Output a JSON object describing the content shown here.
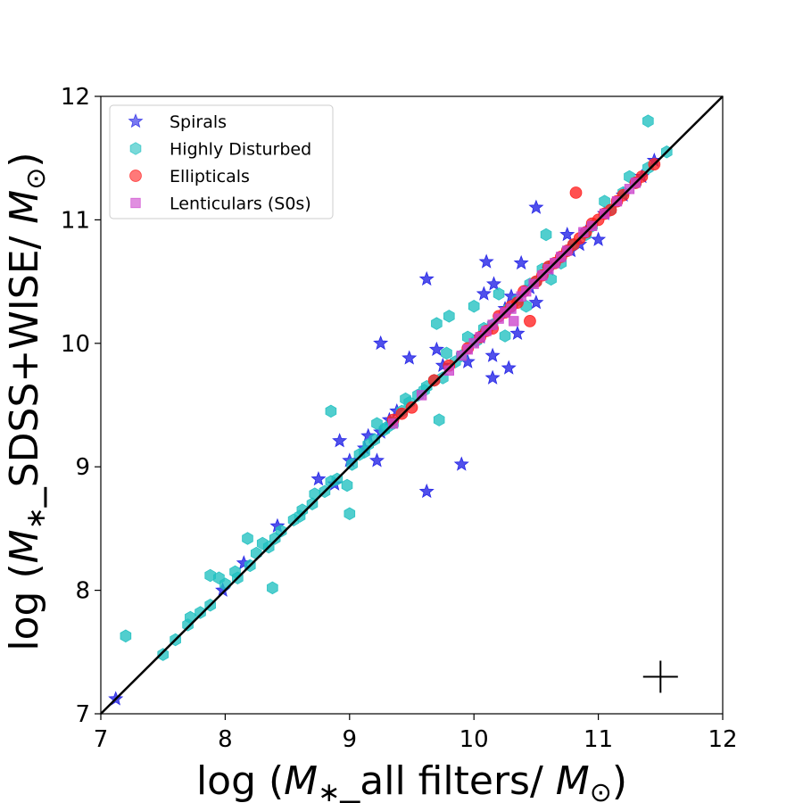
{
  "chart_data": {
    "type": "scatter",
    "title": "",
    "xlabel": {
      "pre": "log (",
      "sym": "M",
      "sub": "∗",
      "mid": "_all filters/ ",
      "sym2": "M",
      "sub2": "⊙",
      "post": ")"
    },
    "ylabel": {
      "pre": "log (",
      "sym": "M",
      "sub": "∗",
      "mid": "_SDSS+WISE/ ",
      "sym2": "M",
      "sub2": "⊙",
      "post": ")"
    },
    "xlim": [
      7,
      12
    ],
    "ylim": [
      7,
      12
    ],
    "xticks": [
      "7",
      "8",
      "9",
      "10",
      "11",
      "12"
    ],
    "yticks": [
      "7",
      "8",
      "9",
      "10",
      "11",
      "12"
    ],
    "grid": false,
    "legend_position": "top-left",
    "one_to_one_line": {
      "from": [
        7,
        7
      ],
      "to": [
        12,
        12
      ],
      "color": "#000000"
    },
    "error_cross": {
      "x": 11.5,
      "y": 7.3,
      "xerr": 0.14,
      "yerr": 0.13,
      "color": "#000000"
    },
    "series": [
      {
        "name": "Spirals",
        "marker": "star",
        "color": "#1f1fe6",
        "points": [
          [
            7.12,
            7.12
          ],
          [
            7.98,
            8.0
          ],
          [
            8.15,
            8.22
          ],
          [
            8.42,
            8.52
          ],
          [
            8.75,
            8.9
          ],
          [
            8.88,
            8.86
          ],
          [
            8.92,
            9.21
          ],
          [
            9.0,
            9.05
          ],
          [
            9.12,
            9.15
          ],
          [
            9.15,
            9.25
          ],
          [
            9.22,
            9.05
          ],
          [
            9.25,
            9.28
          ],
          [
            9.32,
            9.38
          ],
          [
            9.38,
            9.45
          ],
          [
            9.25,
            10.0
          ],
          [
            9.48,
            9.88
          ],
          [
            9.62,
            10.52
          ],
          [
            9.62,
            8.8
          ],
          [
            9.7,
            9.95
          ],
          [
            9.75,
            9.82
          ],
          [
            9.9,
            9.02
          ],
          [
            9.95,
            9.85
          ],
          [
            10.05,
            10.05
          ],
          [
            10.08,
            10.4
          ],
          [
            10.1,
            10.66
          ],
          [
            10.15,
            9.72
          ],
          [
            10.15,
            9.9
          ],
          [
            10.16,
            10.48
          ],
          [
            10.25,
            10.28
          ],
          [
            10.28,
            9.8
          ],
          [
            10.3,
            10.38
          ],
          [
            10.35,
            10.08
          ],
          [
            10.38,
            10.65
          ],
          [
            10.45,
            10.45
          ],
          [
            10.5,
            10.33
          ],
          [
            10.5,
            11.1
          ],
          [
            10.6,
            10.6
          ],
          [
            10.75,
            10.88
          ],
          [
            10.78,
            10.75
          ],
          [
            10.85,
            10.8
          ],
          [
            10.9,
            10.9
          ],
          [
            11.0,
            10.84
          ],
          [
            11.05,
            11.05
          ],
          [
            11.2,
            11.2
          ],
          [
            11.35,
            11.35
          ],
          [
            11.45,
            11.48
          ]
        ]
      },
      {
        "name": "Highly Disturbed",
        "marker": "hexagon",
        "color": "#20c0c0",
        "points": [
          [
            7.2,
            7.63
          ],
          [
            7.5,
            7.48
          ],
          [
            7.6,
            7.6
          ],
          [
            7.7,
            7.72
          ],
          [
            7.72,
            7.78
          ],
          [
            7.8,
            7.82
          ],
          [
            7.88,
            7.88
          ],
          [
            7.88,
            8.12
          ],
          [
            7.95,
            8.1
          ],
          [
            8.0,
            8.05
          ],
          [
            8.08,
            8.15
          ],
          [
            8.1,
            8.1
          ],
          [
            8.18,
            8.42
          ],
          [
            8.2,
            8.2
          ],
          [
            8.25,
            8.3
          ],
          [
            8.3,
            8.38
          ],
          [
            8.35,
            8.35
          ],
          [
            8.38,
            8.02
          ],
          [
            8.4,
            8.42
          ],
          [
            8.45,
            8.48
          ],
          [
            8.55,
            8.57
          ],
          [
            8.6,
            8.6
          ],
          [
            8.62,
            8.65
          ],
          [
            8.7,
            8.7
          ],
          [
            8.72,
            8.78
          ],
          [
            8.8,
            8.8
          ],
          [
            8.85,
            9.45
          ],
          [
            8.85,
            8.88
          ],
          [
            8.9,
            8.9
          ],
          [
            8.98,
            8.85
          ],
          [
            9.0,
            8.62
          ],
          [
            9.02,
            9.02
          ],
          [
            9.08,
            9.1
          ],
          [
            9.12,
            9.12
          ],
          [
            9.15,
            9.18
          ],
          [
            9.2,
            9.22
          ],
          [
            9.22,
            9.35
          ],
          [
            9.28,
            9.3
          ],
          [
            9.3,
            9.32
          ],
          [
            9.35,
            9.35
          ],
          [
            9.42,
            9.45
          ],
          [
            9.45,
            9.55
          ],
          [
            9.48,
            9.52
          ],
          [
            9.55,
            9.58
          ],
          [
            9.6,
            9.62
          ],
          [
            9.62,
            9.65
          ],
          [
            9.68,
            9.7
          ],
          [
            9.7,
            10.16
          ],
          [
            9.72,
            9.38
          ],
          [
            9.75,
            9.72
          ],
          [
            9.78,
            9.92
          ],
          [
            9.8,
            10.22
          ],
          [
            9.85,
            9.85
          ],
          [
            9.9,
            9.9
          ],
          [
            9.95,
            10.05
          ],
          [
            10.0,
            10.3
          ],
          [
            10.02,
            10.02
          ],
          [
            10.08,
            10.12
          ],
          [
            10.15,
            10.15
          ],
          [
            10.2,
            10.4
          ],
          [
            10.25,
            10.06
          ],
          [
            10.28,
            10.28
          ],
          [
            10.35,
            10.35
          ],
          [
            10.42,
            10.3
          ],
          [
            10.45,
            10.48
          ],
          [
            10.5,
            10.5
          ],
          [
            10.55,
            10.6
          ],
          [
            10.58,
            10.88
          ],
          [
            10.6,
            10.62
          ],
          [
            10.62,
            10.52
          ],
          [
            10.7,
            10.65
          ],
          [
            10.75,
            10.75
          ],
          [
            10.8,
            10.8
          ],
          [
            10.9,
            10.88
          ],
          [
            10.95,
            10.95
          ],
          [
            11.05,
            11.15
          ],
          [
            11.1,
            11.08
          ],
          [
            11.2,
            11.22
          ],
          [
            11.25,
            11.35
          ],
          [
            11.3,
            11.3
          ],
          [
            11.4,
            11.42
          ],
          [
            11.55,
            11.55
          ],
          [
            11.4,
            11.8
          ]
        ]
      },
      {
        "name": "Ellipticals",
        "marker": "circle",
        "color": "#ff2020",
        "points": [
          [
            9.35,
            9.38
          ],
          [
            9.42,
            9.43
          ],
          [
            9.5,
            9.48
          ],
          [
            9.68,
            9.7
          ],
          [
            9.8,
            9.82
          ],
          [
            9.95,
            9.96
          ],
          [
            10.05,
            10.05
          ],
          [
            10.1,
            10.1
          ],
          [
            10.15,
            10.12
          ],
          [
            10.2,
            10.22
          ],
          [
            10.25,
            10.25
          ],
          [
            10.3,
            10.3
          ],
          [
            10.35,
            10.33
          ],
          [
            10.4,
            10.42
          ],
          [
            10.45,
            10.18
          ],
          [
            10.5,
            10.5
          ],
          [
            10.55,
            10.55
          ],
          [
            10.6,
            10.62
          ],
          [
            10.65,
            10.65
          ],
          [
            10.7,
            10.7
          ],
          [
            10.75,
            10.75
          ],
          [
            10.8,
            10.8
          ],
          [
            10.82,
            11.22
          ],
          [
            10.85,
            10.85
          ],
          [
            10.9,
            10.9
          ],
          [
            10.95,
            10.97
          ],
          [
            11.0,
            11.0
          ],
          [
            11.05,
            11.05
          ],
          [
            11.1,
            11.08
          ],
          [
            11.15,
            11.15
          ],
          [
            11.2,
            11.2
          ],
          [
            11.3,
            11.3
          ],
          [
            11.35,
            11.35
          ],
          [
            11.45,
            11.45
          ]
        ]
      },
      {
        "name": "Lenticulars (S0s)",
        "marker": "square",
        "color": "#cc44cc",
        "points": [
          [
            9.35,
            9.35
          ],
          [
            9.58,
            9.58
          ],
          [
            9.8,
            9.78
          ],
          [
            9.9,
            9.9
          ],
          [
            9.95,
            9.95
          ],
          [
            10.0,
            10.0
          ],
          [
            10.05,
            10.05
          ],
          [
            10.1,
            10.1
          ],
          [
            10.15,
            10.15
          ],
          [
            10.2,
            10.2
          ],
          [
            10.25,
            10.25
          ],
          [
            10.3,
            10.28
          ],
          [
            10.32,
            10.18
          ],
          [
            10.38,
            10.38
          ],
          [
            10.42,
            10.42
          ],
          [
            10.48,
            10.48
          ],
          [
            10.55,
            10.55
          ],
          [
            10.6,
            10.6
          ],
          [
            10.65,
            10.65
          ],
          [
            10.7,
            10.7
          ],
          [
            10.75,
            10.75
          ],
          [
            10.88,
            10.9
          ],
          [
            10.95,
            10.95
          ],
          [
            11.05,
            11.05
          ],
          [
            11.15,
            11.15
          ],
          [
            11.25,
            11.25
          ],
          [
            11.3,
            11.3
          ]
        ]
      }
    ]
  }
}
